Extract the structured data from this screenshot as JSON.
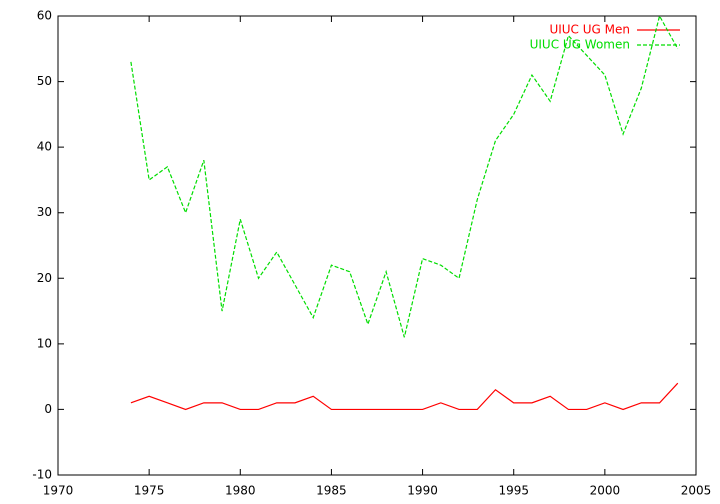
{
  "chart_data": {
    "type": "line",
    "x": [
      1974,
      1975,
      1976,
      1977,
      1978,
      1979,
      1980,
      1981,
      1982,
      1983,
      1984,
      1985,
      1986,
      1987,
      1988,
      1989,
      1990,
      1991,
      1992,
      1993,
      1994,
      1995,
      1996,
      1997,
      1998,
      1999,
      2000,
      2001,
      2002,
      2003,
      2004
    ],
    "series": [
      {
        "name": "UIUC UG Men",
        "color": "#ff0000",
        "dashed": false,
        "values": [
          1,
          2,
          1,
          0,
          1,
          1,
          0,
          0,
          1,
          1,
          2,
          0,
          0,
          0,
          0,
          0,
          0,
          1,
          0,
          0,
          3,
          1,
          1,
          2,
          0,
          0,
          1,
          0,
          1,
          1,
          4
        ]
      },
      {
        "name": "UIUC UG Women",
        "color": "#00dd00",
        "dashed": true,
        "values": [
          53,
          35,
          37,
          30,
          38,
          15,
          29,
          20,
          24,
          19,
          14,
          22,
          21,
          13,
          21,
          11,
          23,
          22,
          20,
          32,
          41,
          45,
          51,
          47,
          57,
          54,
          51,
          42,
          49,
          60,
          55
        ]
      }
    ],
    "xlim": [
      1970,
      2005
    ],
    "xticks": [
      1970,
      1975,
      1980,
      1985,
      1990,
      1995,
      2000,
      2005
    ],
    "ylim": [
      -10,
      60
    ],
    "yticks": [
      -10,
      0,
      10,
      20,
      30,
      40,
      50,
      60
    ],
    "legend": "top-right"
  }
}
